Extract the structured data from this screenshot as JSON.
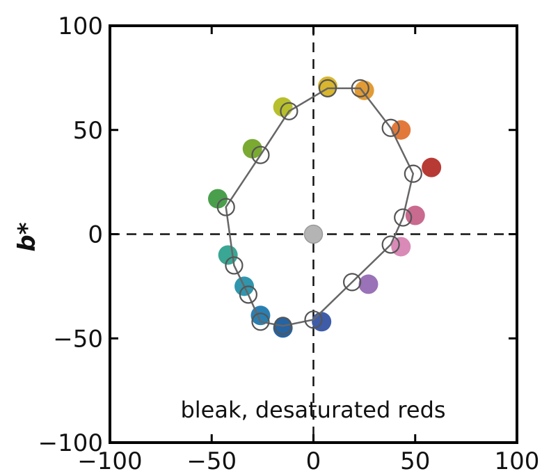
{
  "chart_data": {
    "type": "scatter",
    "title": "",
    "xlabel": "",
    "ylabel": "b*",
    "xlim": [
      -100,
      100
    ],
    "ylim": [
      -100,
      100
    ],
    "xticks": [
      -100,
      -50,
      0,
      50,
      100
    ],
    "yticks": [
      -100,
      -50,
      0,
      50,
      100
    ],
    "xtick_labels": [
      "−100",
      "−50",
      "0",
      "50",
      "100"
    ],
    "ytick_labels": [
      "−100",
      "−50",
      "0",
      "50",
      "100"
    ],
    "grid": false,
    "crosshair_lines": {
      "x": 0,
      "y": 0,
      "style": "dashed"
    },
    "annotation": "bleak, desaturated reds",
    "series": [
      {
        "kind": "filled-markers",
        "points": [
          {
            "x": 58,
            "y": 32,
            "color": "#b83a35"
          },
          {
            "x": 50,
            "y": 9,
            "color": "#c96a8f"
          },
          {
            "x": 43,
            "y": -6,
            "color": "#d98ab6"
          },
          {
            "x": 27,
            "y": -24,
            "color": "#9a72b7"
          },
          {
            "x": 4,
            "y": -42,
            "color": "#3e5ca8"
          },
          {
            "x": -15,
            "y": -45,
            "color": "#2563a3"
          },
          {
            "x": -26,
            "y": -39,
            "color": "#2a7fb2"
          },
          {
            "x": -34,
            "y": -25,
            "color": "#2f96ad"
          },
          {
            "x": -42,
            "y": -10,
            "color": "#3aa694"
          },
          {
            "x": -47,
            "y": 17,
            "color": "#4a9f4c"
          },
          {
            "x": -30,
            "y": 41,
            "color": "#7aaa32"
          },
          {
            "x": -15,
            "y": 61,
            "color": "#b7bf2c"
          },
          {
            "x": 7,
            "y": 71,
            "color": "#d9b62e"
          },
          {
            "x": 25,
            "y": 69,
            "color": "#e29b34"
          },
          {
            "x": 43,
            "y": 50,
            "color": "#e2793a"
          }
        ]
      },
      {
        "kind": "open-markers-connected",
        "color": "#666666",
        "points": [
          {
            "x": 49,
            "y": 29
          },
          {
            "x": 44,
            "y": 8
          },
          {
            "x": 38,
            "y": -5
          },
          {
            "x": 19,
            "y": -23
          },
          {
            "x": 0,
            "y": -41
          },
          {
            "x": -15,
            "y": -44
          },
          {
            "x": -26,
            "y": -42
          },
          {
            "x": -32,
            "y": -29
          },
          {
            "x": -39,
            "y": -15
          },
          {
            "x": -43,
            "y": 13
          },
          {
            "x": -26,
            "y": 38
          },
          {
            "x": -12,
            "y": 59
          },
          {
            "x": 7,
            "y": 70
          },
          {
            "x": 23,
            "y": 70
          },
          {
            "x": 38,
            "y": 51
          }
        ]
      },
      {
        "kind": "neutral-marker",
        "points": [
          {
            "x": 0,
            "y": 0,
            "color": "#b4b4b4"
          }
        ]
      }
    ]
  }
}
